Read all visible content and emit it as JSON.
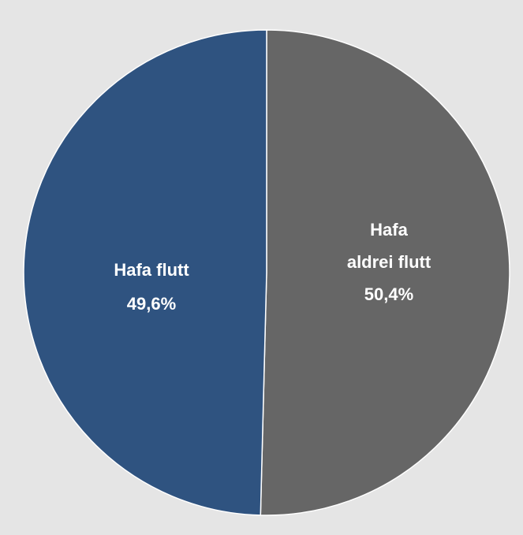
{
  "chart_data": {
    "type": "pie",
    "slices": [
      {
        "label_lines": [
          "Hafa aldrei flutt",
          "50,4%"
        ],
        "value": 50.4,
        "color": "#666666"
      },
      {
        "label_lines": [
          "Hafa flutt",
          "49,6%"
        ],
        "value": 49.6,
        "color": "#2f5380"
      }
    ]
  },
  "colors": {
    "background": "#e5e5e5",
    "label_text": "#ffffff"
  }
}
